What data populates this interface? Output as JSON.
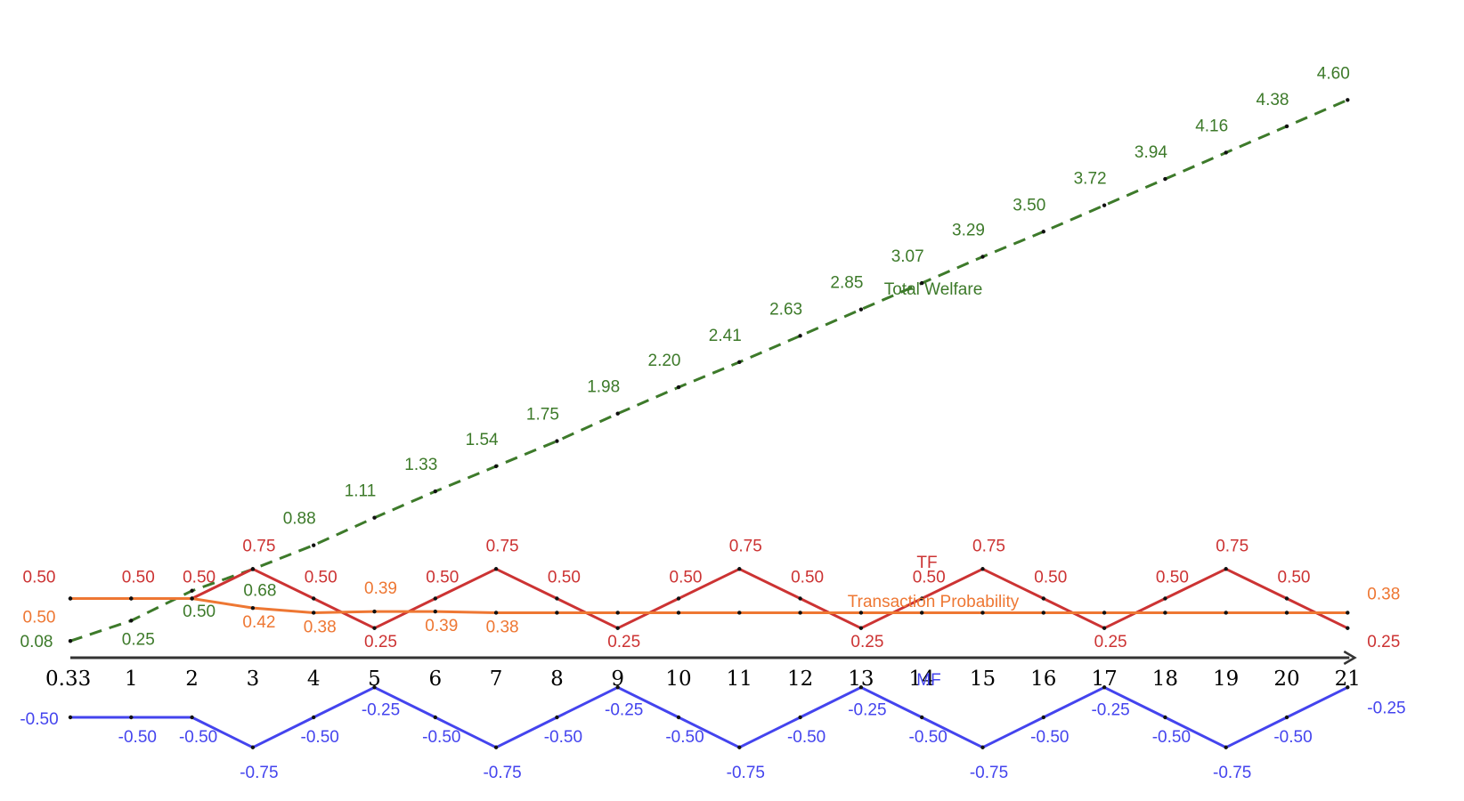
{
  "chart_data": {
    "type": "line",
    "x": [
      0.33,
      1,
      2,
      3,
      4,
      5,
      6,
      7,
      8,
      9,
      10,
      11,
      12,
      13,
      14,
      15,
      16,
      17,
      18,
      19,
      20,
      21
    ],
    "x_tick_labels": [
      "0.33",
      "1",
      "2",
      "3",
      "4",
      "5",
      "6",
      "7",
      "8",
      "9",
      "10",
      "11",
      "12",
      "13",
      "14",
      "15",
      "16",
      "17",
      "18",
      "19",
      "20",
      "21"
    ],
    "axis_range_x": [
      0.33,
      21
    ],
    "grid": false,
    "series": [
      {
        "name": "Total Welfare",
        "color": "#3d7a2a",
        "line_style": "dashed",
        "values": [
          0.08,
          0.25,
          0.5,
          0.68,
          0.88,
          1.11,
          1.33,
          1.54,
          1.75,
          1.98,
          2.2,
          2.41,
          2.63,
          2.85,
          3.07,
          3.29,
          3.5,
          3.72,
          3.94,
          4.16,
          4.38,
          4.6
        ],
        "labels": [
          "0.08",
          "0.25",
          "0.50",
          "0.68",
          "0.88",
          "1.11",
          "1.33",
          "1.54",
          "1.75",
          "1.98",
          "2.20",
          "2.41",
          "2.63",
          "2.85",
          "3.07",
          "3.29",
          "3.50",
          "3.72",
          "3.94",
          "4.16",
          "4.38",
          "4.60"
        ]
      },
      {
        "name": "TF",
        "color": "#cc3333",
        "line_style": "solid",
        "values": [
          0.5,
          0.5,
          0.5,
          0.75,
          0.5,
          0.25,
          0.5,
          0.75,
          0.5,
          0.25,
          0.5,
          0.75,
          0.5,
          0.25,
          0.5,
          0.75,
          0.5,
          0.25,
          0.5,
          0.75,
          0.5,
          0.25
        ],
        "labels": [
          "0.50",
          "0.50",
          "0.50",
          "0.75",
          "0.50",
          "0.25",
          "0.50",
          "0.75",
          "0.50",
          "0.25",
          "0.50",
          "0.75",
          "0.50",
          "0.25",
          "0.50",
          "0.75",
          "0.50",
          "0.25",
          "0.50",
          "0.75",
          "0.50",
          "0.25"
        ]
      },
      {
        "name": "Transaction Probability",
        "color": "#ee7733",
        "line_style": "solid",
        "values": [
          0.5,
          0.5,
          0.5,
          0.42,
          0.38,
          0.39,
          0.39,
          0.38,
          0.38,
          0.38,
          0.38,
          0.38,
          0.38,
          0.38,
          0.38,
          0.38,
          0.38,
          0.38,
          0.38,
          0.38,
          0.38,
          0.38
        ],
        "labels": [
          "0.50",
          "",
          "",
          "0.42",
          "0.38",
          "0.39",
          "0.39",
          "0.38",
          "",
          "",
          "",
          "",
          "",
          "",
          "",
          "",
          "",
          "",
          "",
          "",
          "",
          "0.38"
        ]
      },
      {
        "name": "MF",
        "color": "#4444ee",
        "line_style": "solid",
        "values": [
          -0.5,
          -0.5,
          -0.5,
          -0.75,
          -0.5,
          -0.25,
          -0.5,
          -0.75,
          -0.5,
          -0.25,
          -0.5,
          -0.75,
          -0.5,
          -0.25,
          -0.5,
          -0.75,
          -0.5,
          -0.25,
          -0.5,
          -0.75,
          -0.5,
          -0.25
        ],
        "labels": [
          "-0.50",
          "-0.50",
          "-0.50",
          "-0.75",
          "-0.50",
          "-0.25",
          "-0.50",
          "-0.75",
          "-0.50",
          "-0.25",
          "-0.50",
          "-0.75",
          "-0.50",
          "-0.25",
          "-0.50",
          "-0.75",
          "-0.50",
          "-0.25",
          "-0.50",
          "-0.75",
          "-0.50",
          "-0.25"
        ]
      }
    ]
  }
}
